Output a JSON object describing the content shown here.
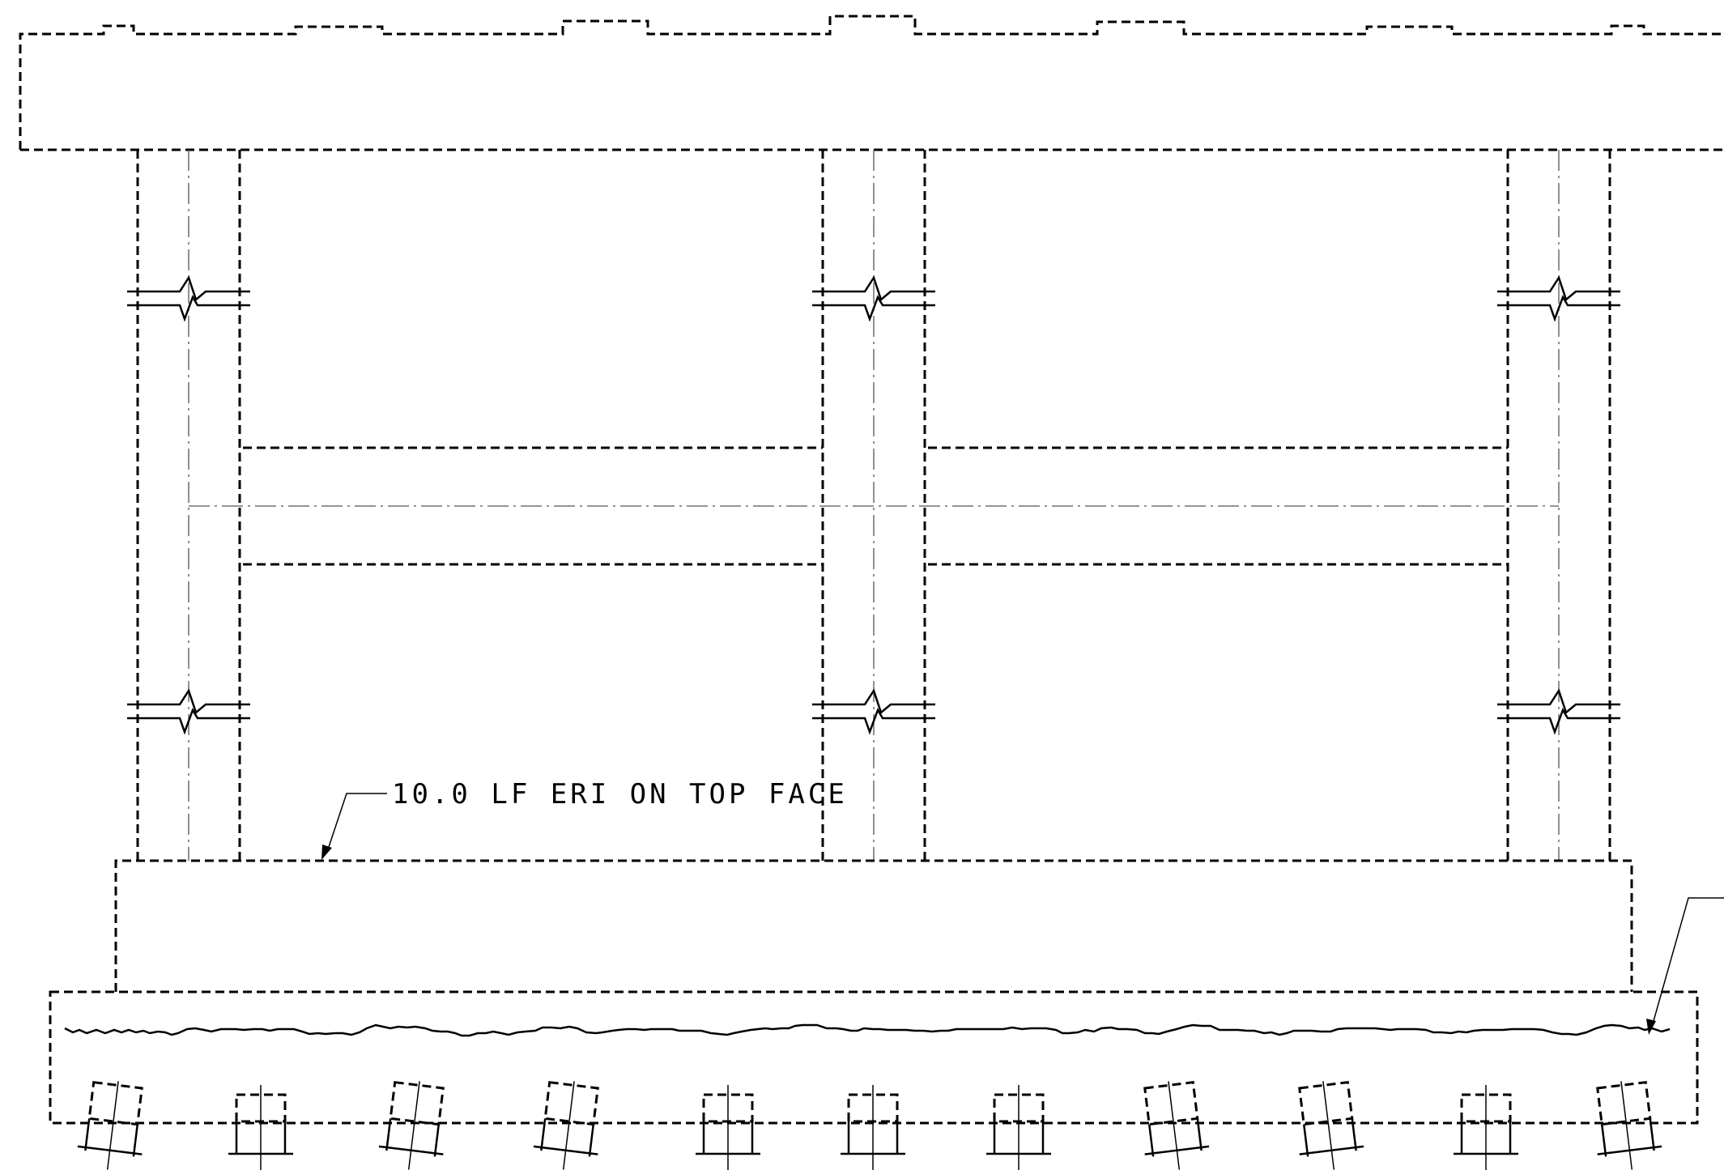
{
  "annotations": {
    "eri_note": "10.0 LF ERI ON TOP FACE"
  },
  "colors": {
    "line": "#000000",
    "centerline": "#555555",
    "background": "#ffffff"
  }
}
